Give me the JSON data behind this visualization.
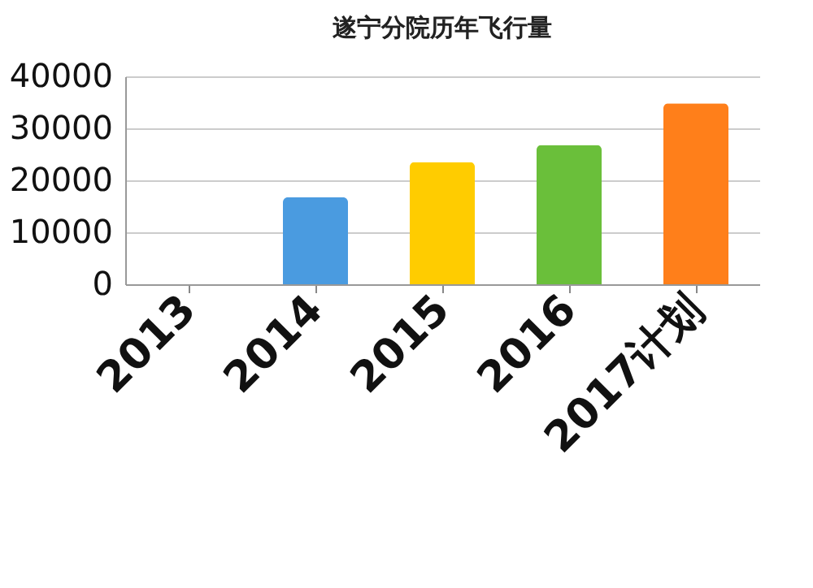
{
  "chart_data": {
    "type": "bar",
    "title": "遂宁分院历年飞行量",
    "categories": [
      "2013",
      "2014",
      "2015",
      "2016",
      "2017计划"
    ],
    "values": [
      null,
      16700,
      23500,
      26800,
      34800
    ],
    "colors": [
      "#4f81bd",
      "#4a9be0",
      "#ffcc00",
      "#6abf3a",
      "#ff7f1a"
    ],
    "ylim": [
      0,
      40000
    ],
    "yticks": [
      0,
      10000,
      20000,
      30000,
      40000
    ],
    "grid": "y"
  }
}
